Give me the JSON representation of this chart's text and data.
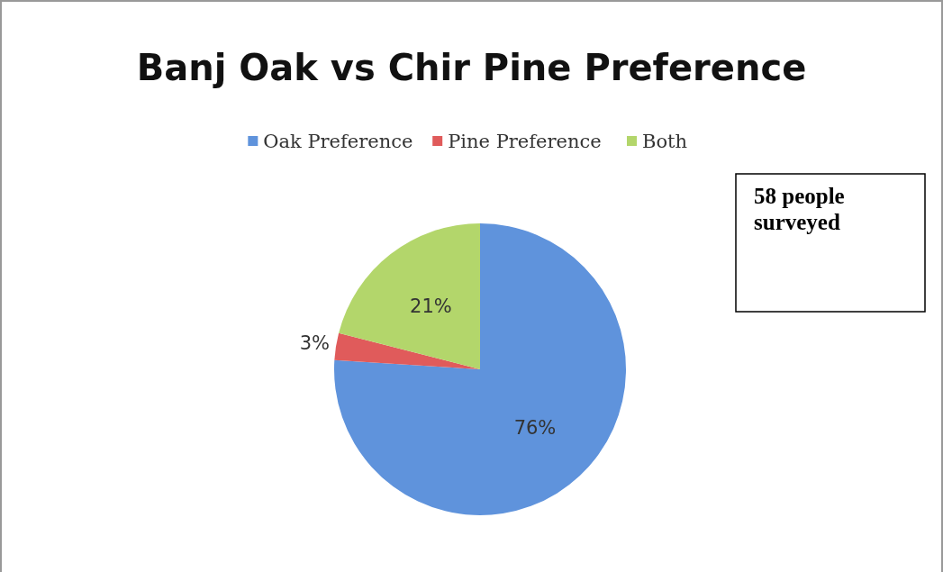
{
  "chart_data": {
    "type": "pie",
    "title": "Banj Oak vs Chir Pine Preference",
    "categories": [
      "Oak Preference",
      "Pine Preference",
      "Both"
    ],
    "values": [
      76,
      3,
      21
    ],
    "value_labels": [
      "76%",
      "3%",
      "21%"
    ],
    "colors": [
      "#5f93dc",
      "#e05b5b",
      "#b3d66b"
    ],
    "legend": "top",
    "annotations": [
      "58 people surveyed"
    ]
  }
}
